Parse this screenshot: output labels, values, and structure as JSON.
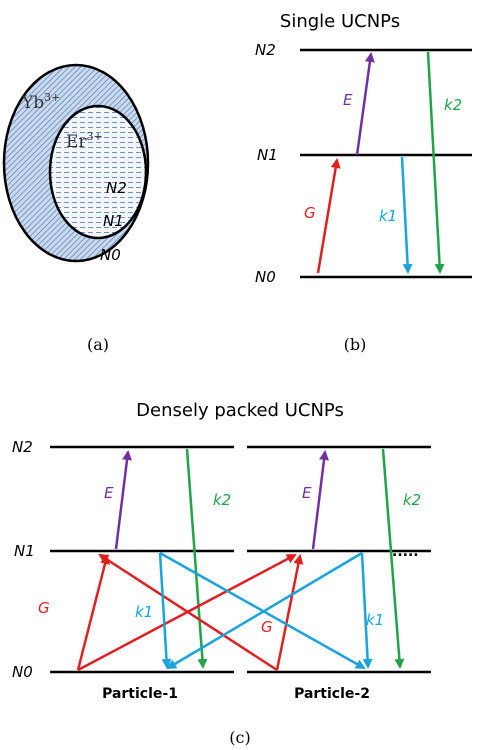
{
  "panel_a": {
    "shell_label": {
      "base": "Yb",
      "sup": "3+"
    },
    "core_label": {
      "base": "Er",
      "sup": "3+"
    },
    "levels": [
      "N2",
      "N1",
      "N0"
    ],
    "caption": "(a)"
  },
  "panel_b": {
    "title": "Single UCNPs",
    "levels": [
      "N2",
      "N1",
      "N0"
    ],
    "transitions": [
      "E",
      "G",
      "k1",
      "k2"
    ],
    "caption": "(b)"
  },
  "panel_c": {
    "title": "Densely packed UCNPs",
    "levels": [
      "N2",
      "N1",
      "N0"
    ],
    "transitions": [
      "E",
      "G",
      "k1",
      "k2"
    ],
    "particles": [
      "Particle-1",
      "Particle-2"
    ],
    "ellipsis": ".....",
    "caption": "(c)"
  }
}
